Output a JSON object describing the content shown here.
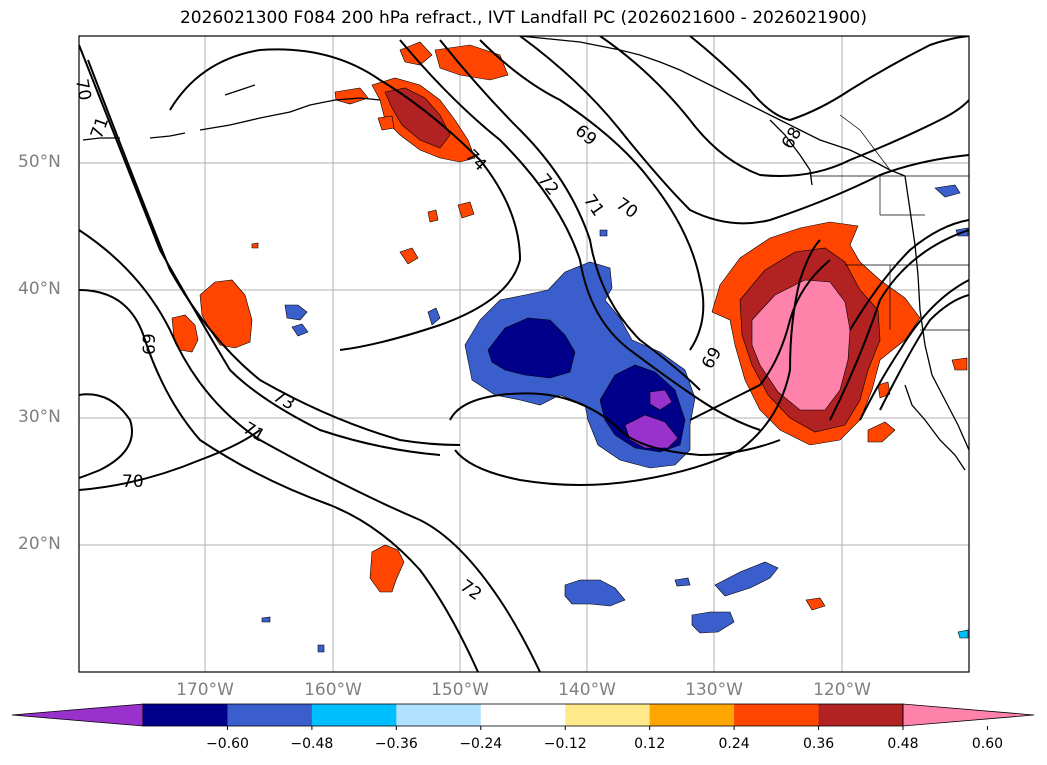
{
  "title": "2026021300 F084 200 hPa refract., IVT Landfall PC (2026021600 - 2026021900)",
  "lat_labels": [
    "50°N",
    "40°N",
    "30°N",
    "20°N"
  ],
  "lon_labels": [
    "170°W",
    "160°W",
    "150°W",
    "140°W",
    "130°W",
    "120°W"
  ],
  "contour_labels": [
    "70",
    "71",
    "74",
    "72",
    "71",
    "70",
    "69",
    "68",
    "69",
    "73",
    "71",
    "70",
    "72",
    "69"
  ],
  "colorbar": {
    "tick_labels": [
      "−0.60",
      "−0.48",
      "−0.36",
      "−0.24",
      "−0.12",
      "0.12",
      "0.24",
      "0.36",
      "0.48",
      "0.60"
    ],
    "colors": [
      "#9932cc",
      "#00008b",
      "#3a5fcd",
      "#00bfff",
      "#b0e2ff",
      "#ffffff",
      "#ffe98a",
      "#ffa500",
      "#ff4500",
      "#b22222",
      "#ff82ab"
    ]
  }
}
